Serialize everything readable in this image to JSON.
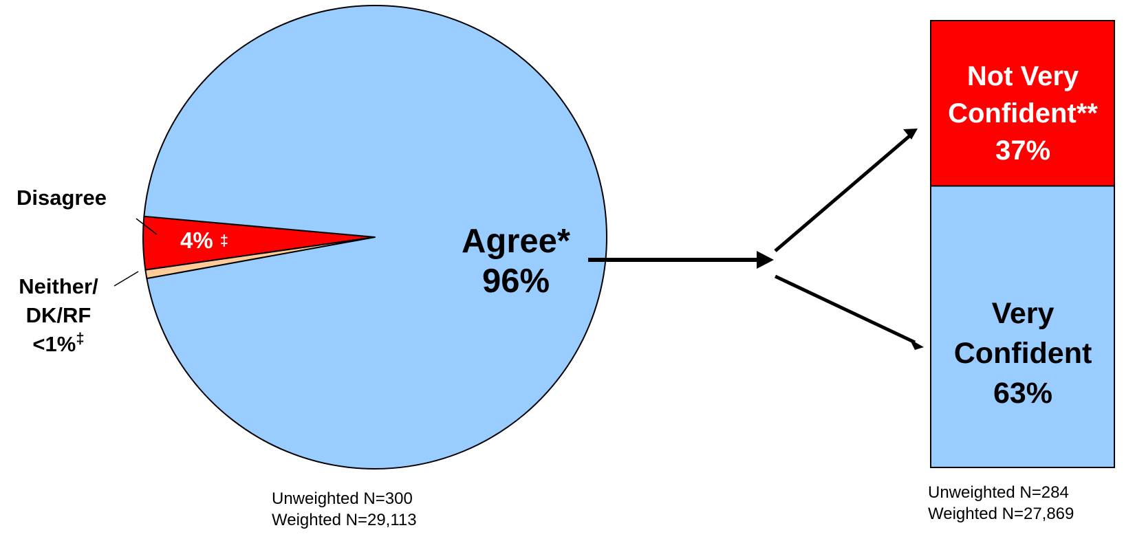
{
  "chart_data": [
    {
      "type": "pie",
      "slices": [
        {
          "label": "Agree*",
          "value": 96,
          "value_label": "96%",
          "color": "#99ccff"
        },
        {
          "label": "Disagree",
          "value": 3.7,
          "value_label": "4%",
          "marker": "‡",
          "color": "#ff0000"
        },
        {
          "label_lines": [
            "Neither/",
            "DK/RF"
          ],
          "value": 0.6,
          "value_label": "<1%",
          "marker": "‡",
          "color": "#ffcc99"
        }
      ],
      "notes": [
        "Unweighted N=300",
        "Weighted N=29,113"
      ]
    },
    {
      "type": "bar",
      "stacked": true,
      "segments": [
        {
          "label_lines": [
            "Not Very",
            "Confident**"
          ],
          "value": 37,
          "value_label": "37%",
          "color": "#ff0000",
          "text_color": "#ffffff"
        },
        {
          "label_lines": [
            "Very",
            "Confident"
          ],
          "value": 63,
          "value_label": "63%",
          "color": "#99ccff",
          "text_color": "#000000"
        }
      ],
      "notes": [
        "Unweighted N=284",
        "Weighted N=27,869"
      ]
    }
  ]
}
